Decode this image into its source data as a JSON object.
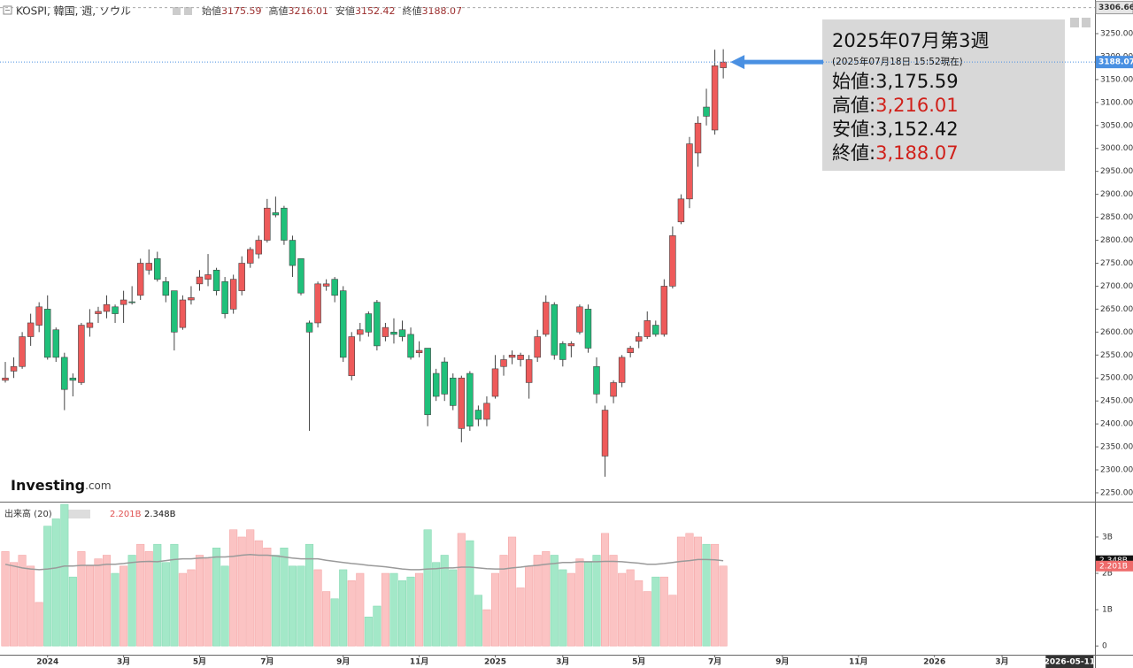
{
  "header": {
    "symbol": "KOSPI, 韓国, 週, ソウル",
    "ohlc": [
      {
        "label": "始値",
        "value": 3175.59
      },
      {
        "label": "高値",
        "value": 3216.01
      },
      {
        "label": "安値",
        "value": 3152.42
      },
      {
        "label": "終値",
        "value": 3188.07
      }
    ]
  },
  "info_box": {
    "title": "2025年07月第3週",
    "subtitle": "(2025年07月18日 15:52現在)",
    "rows": [
      {
        "label": "始値:",
        "value": "3,175.59",
        "color": "#111111"
      },
      {
        "label": "高値:",
        "value": "3,216.01",
        "color": "#d0201a"
      },
      {
        "label": "安値:",
        "value": "3,152.42",
        "color": "#111111"
      },
      {
        "label": "終値:",
        "value": "3,188.07",
        "color": "#d0201a"
      }
    ]
  },
  "logo": {
    "brand": "Investing",
    "suffix": ".com"
  },
  "chart_data": {
    "type": "candlestick",
    "up_color": "#ee5a5a",
    "down_color": "#1fc07a",
    "volume_up_color": "#fbc3c3",
    "volume_down_color": "#a3e8c8",
    "open": [
      2495,
      2515,
      2525,
      2590,
      2615,
      2650,
      2605,
      2545,
      2500,
      2490,
      2610,
      2640,
      2645,
      2655,
      2660,
      2666,
      2680,
      2735,
      2760,
      2710,
      2690,
      2610,
      2670,
      2705,
      2715,
      2735,
      2710,
      2650,
      2690,
      2750,
      2770,
      2800,
      2860,
      2870,
      2800,
      2760,
      2620,
      2620,
      2700,
      2715,
      2690,
      2505,
      2595,
      2640,
      2665,
      2590,
      2600,
      2605,
      2595,
      2555,
      2565,
      2510,
      2535,
      2500,
      2390,
      2510,
      2430,
      2410,
      2460,
      2525,
      2545,
      2540,
      2490,
      2545,
      2595,
      2660,
      2575,
      2570,
      2600,
      2650,
      2525,
      2330,
      2460,
      2490,
      2555,
      2580,
      2590,
      2615,
      2595,
      2700,
      2840,
      2890,
      2990,
      3090,
      3040,
      3175.59
    ],
    "high": [
      2535,
      2545,
      2600,
      2640,
      2665,
      2680,
      2610,
      2555,
      2510,
      2620,
      2650,
      2655,
      2680,
      2660,
      2690,
      2700,
      2760,
      2780,
      2775,
      2720,
      2690,
      2680,
      2700,
      2735,
      2770,
      2740,
      2720,
      2725,
      2765,
      2785,
      2810,
      2890,
      2895,
      2875,
      2810,
      2760,
      2625,
      2710,
      2715,
      2720,
      2700,
      2600,
      2620,
      2645,
      2670,
      2620,
      2630,
      2625,
      2610,
      2580,
      2565,
      2520,
      2545,
      2510,
      2505,
      2515,
      2440,
      2460,
      2550,
      2550,
      2560,
      2555,
      2550,
      2605,
      2680,
      2665,
      2580,
      2580,
      2660,
      2660,
      2545,
      2440,
      2495,
      2550,
      2570,
      2600,
      2645,
      2625,
      2715,
      2830,
      2900,
      3025,
      3070,
      3130,
      3215,
      3216.01
    ],
    "low": [
      2490,
      2500,
      2520,
      2570,
      2600,
      2540,
      2535,
      2430,
      2460,
      2485,
      2590,
      2620,
      2630,
      2620,
      2620,
      2660,
      2670,
      2725,
      2710,
      2665,
      2560,
      2605,
      2660,
      2690,
      2700,
      2680,
      2630,
      2640,
      2680,
      2740,
      2760,
      2795,
      2850,
      2790,
      2720,
      2680,
      2385,
      2610,
      2690,
      2665,
      2535,
      2495,
      2580,
      2590,
      2560,
      2580,
      2575,
      2580,
      2540,
      2545,
      2395,
      2450,
      2450,
      2430,
      2360,
      2385,
      2395,
      2395,
      2455,
      2505,
      2530,
      2525,
      2455,
      2535,
      2590,
      2540,
      2525,
      2545,
      2595,
      2555,
      2445,
      2285,
      2445,
      2480,
      2545,
      2565,
      2585,
      2590,
      2590,
      2695,
      2835,
      2870,
      2960,
      3050,
      3030,
      3152.42
    ],
    "close": [
      2500,
      2525,
      2590,
      2620,
      2655,
      2545,
      2545,
      2475,
      2495,
      2615,
      2620,
      2645,
      2660,
      2640,
      2670,
      2664,
      2750,
      2750,
      2715,
      2680,
      2600,
      2670,
      2675,
      2720,
      2725,
      2690,
      2640,
      2715,
      2750,
      2780,
      2800,
      2870,
      2855,
      2800,
      2745,
      2685,
      2600,
      2705,
      2705,
      2680,
      2545,
      2590,
      2605,
      2600,
      2570,
      2610,
      2595,
      2590,
      2545,
      2560,
      2420,
      2460,
      2465,
      2440,
      2500,
      2395,
      2410,
      2445,
      2520,
      2540,
      2550,
      2550,
      2540,
      2590,
      2665,
      2550,
      2540,
      2575,
      2655,
      2565,
      2465,
      2430,
      2490,
      2545,
      2565,
      2590,
      2625,
      2595,
      2700,
      2810,
      2890,
      3010,
      3055,
      3070,
      3180,
      3188.07
    ],
    "xlim": [
      -0.63,
      129.0
    ],
    "xticks": [
      {
        "value": 5,
        "label": "2024"
      },
      {
        "value": 14,
        "label": "3月"
      },
      {
        "value": 23,
        "label": "5月"
      },
      {
        "value": 31,
        "label": "7月"
      },
      {
        "value": 40,
        "label": "9月"
      },
      {
        "value": 49,
        "label": "11月"
      },
      {
        "value": 58,
        "label": "2025"
      },
      {
        "value": 66,
        "label": "3月"
      },
      {
        "value": 75,
        "label": "5月"
      },
      {
        "value": 84,
        "label": "7月"
      },
      {
        "value": 92,
        "label": "9月"
      },
      {
        "value": 101,
        "label": "11月"
      },
      {
        "value": 110,
        "label": "2026"
      },
      {
        "value": 118,
        "label": "3月"
      }
    ],
    "cursor_xtick": {
      "value": 126,
      "label": "2026-05-11"
    },
    "ylim": [
      2230.7,
      3323.2
    ],
    "yticks": [
      {
        "value": 2250,
        "label": "2250.00"
      },
      {
        "value": 2300,
        "label": "2300.00"
      },
      {
        "value": 2350,
        "label": "2350.00"
      },
      {
        "value": 2400,
        "label": "2400.00"
      },
      {
        "value": 2450,
        "label": "2450.00"
      },
      {
        "value": 2500,
        "label": "2500.00"
      },
      {
        "value": 2550,
        "label": "2550.00"
      },
      {
        "value": 2600,
        "label": "2600.00"
      },
      {
        "value": 2650,
        "label": "2650.00"
      },
      {
        "value": 2700,
        "label": "2700.00"
      },
      {
        "value": 2750,
        "label": "2750.00"
      },
      {
        "value": 2800,
        "label": "2800.00"
      },
      {
        "value": 2850,
        "label": "2850.00"
      },
      {
        "value": 2900,
        "label": "2900.00"
      },
      {
        "value": 2950,
        "label": "2950.00"
      },
      {
        "value": 3000,
        "label": "3000.00"
      },
      {
        "value": 3050,
        "label": "3050.00"
      },
      {
        "value": 3100,
        "label": "3100.00"
      },
      {
        "value": 3150,
        "label": "3150.00"
      },
      {
        "value": 3200,
        "label": "3200.00"
      },
      {
        "value": 3250,
        "label": "3250.00"
      }
    ],
    "last_price": {
      "value": 3188.07,
      "label": "3188.07",
      "color": "#4a90e2"
    },
    "range_high": {
      "value": 3306.66,
      "label": "3306.66"
    },
    "volume": {
      "name": "出来高 (20)",
      "values": [
        2.6,
        2.3,
        2.5,
        2.2,
        1.2,
        3.3,
        3.5,
        3.9,
        1.9,
        2.6,
        2.2,
        2.4,
        2.5,
        2.0,
        2.2,
        2.5,
        2.8,
        2.6,
        2.8,
        2.3,
        2.8,
        2.0,
        2.1,
        2.5,
        2.4,
        2.7,
        2.2,
        3.2,
        3.0,
        3.2,
        2.9,
        2.7,
        2.5,
        2.7,
        2.2,
        2.2,
        2.8,
        2.1,
        1.5,
        1.3,
        2.1,
        1.8,
        2.0,
        0.8,
        1.1,
        2.0,
        2.0,
        1.8,
        1.9,
        2.0,
        3.2,
        2.3,
        2.5,
        2.1,
        3.1,
        2.9,
        1.4,
        1.0,
        2.0,
        2.5,
        3.0,
        1.6,
        2.2,
        2.5,
        2.6,
        2.5,
        2.1,
        2.0,
        2.4,
        2.3,
        2.5,
        3.1,
        2.5,
        2.0,
        2.1,
        1.8,
        1.5,
        1.9,
        1.9,
        1.4,
        3.0,
        3.1,
        3.0,
        2.8,
        2.8,
        2.201
      ],
      "value_label": "2.201B",
      "ma": [
        2.25,
        2.2,
        2.15,
        2.12,
        2.1,
        2.12,
        2.15,
        2.2,
        2.2,
        2.22,
        2.22,
        2.22,
        2.25,
        2.25,
        2.27,
        2.3,
        2.32,
        2.33,
        2.32,
        2.35,
        2.38,
        2.4,
        2.4,
        2.42,
        2.43,
        2.45,
        2.45,
        2.47,
        2.5,
        2.52,
        2.5,
        2.5,
        2.48,
        2.45,
        2.42,
        2.4,
        2.4,
        2.4,
        2.36,
        2.33,
        2.3,
        2.27,
        2.25,
        2.22,
        2.2,
        2.18,
        2.15,
        2.12,
        2.1,
        2.1,
        2.12,
        2.13,
        2.15,
        2.15,
        2.17,
        2.17,
        2.15,
        2.13,
        2.12,
        2.12,
        2.15,
        2.17,
        2.2,
        2.22,
        2.25,
        2.27,
        2.3,
        2.3,
        2.32,
        2.32,
        2.32,
        2.33,
        2.33,
        2.32,
        2.3,
        2.28,
        2.25,
        2.25,
        2.27,
        2.3,
        2.33,
        2.35,
        2.38,
        2.38,
        2.37,
        2.348
      ],
      "ma_label": "2.348B",
      "ma_color": "#9a9a9a",
      "ylim": [
        -0.24,
        3.9
      ],
      "yticks": [
        0,
        {
          "value": 1,
          "label": "1B"
        },
        {
          "value": 2,
          "label": "2B"
        },
        {
          "value": 3,
          "label": "3B"
        }
      ]
    }
  }
}
